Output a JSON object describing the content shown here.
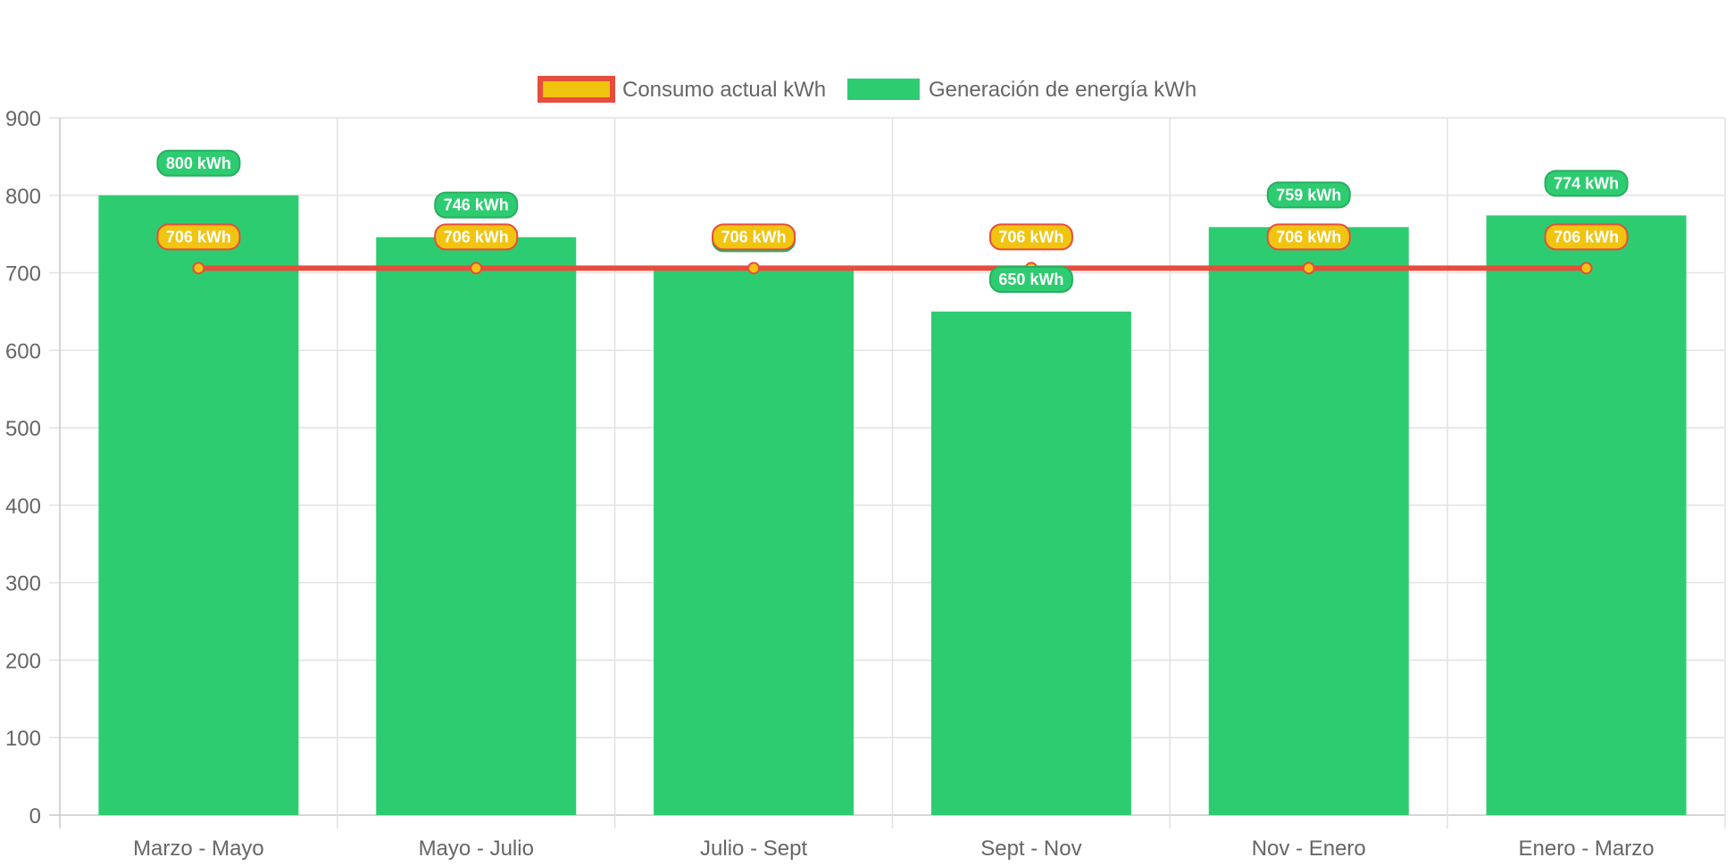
{
  "chart_data": {
    "type": "bar",
    "title": "",
    "xlabel": "",
    "ylabel": "",
    "categories": [
      "Marzo - Mayo",
      "Mayo - Julio",
      "Julio - Sept",
      "Sept - Nov",
      "Nov - Enero",
      "Enero - Marzo"
    ],
    "ylim": [
      0,
      900
    ],
    "yticks": [
      0,
      100,
      200,
      300,
      400,
      500,
      600,
      700,
      800,
      900
    ],
    "grid": true,
    "legend_position": "top",
    "series": [
      {
        "name": "Consumo actual kWh",
        "type": "line",
        "values": [
          706,
          706,
          706,
          706,
          706,
          706
        ],
        "labels": [
          "706 kWh",
          "706 kWh",
          "706 kWh",
          "706 kWh",
          "706 kWh",
          "706 kWh"
        ],
        "color": "#f1c40f",
        "border_color": "#e74c3c"
      },
      {
        "name": "Generación de energía kWh",
        "type": "bar",
        "values": [
          800,
          746,
          706,
          650,
          759,
          774
        ],
        "labels": [
          "800 kWh",
          "746 kWh",
          "706 kWh",
          "650 kWh",
          "759 kWh",
          "774 kWh"
        ],
        "color": "#2ecc71",
        "border_color": "#27ae60"
      }
    ]
  }
}
